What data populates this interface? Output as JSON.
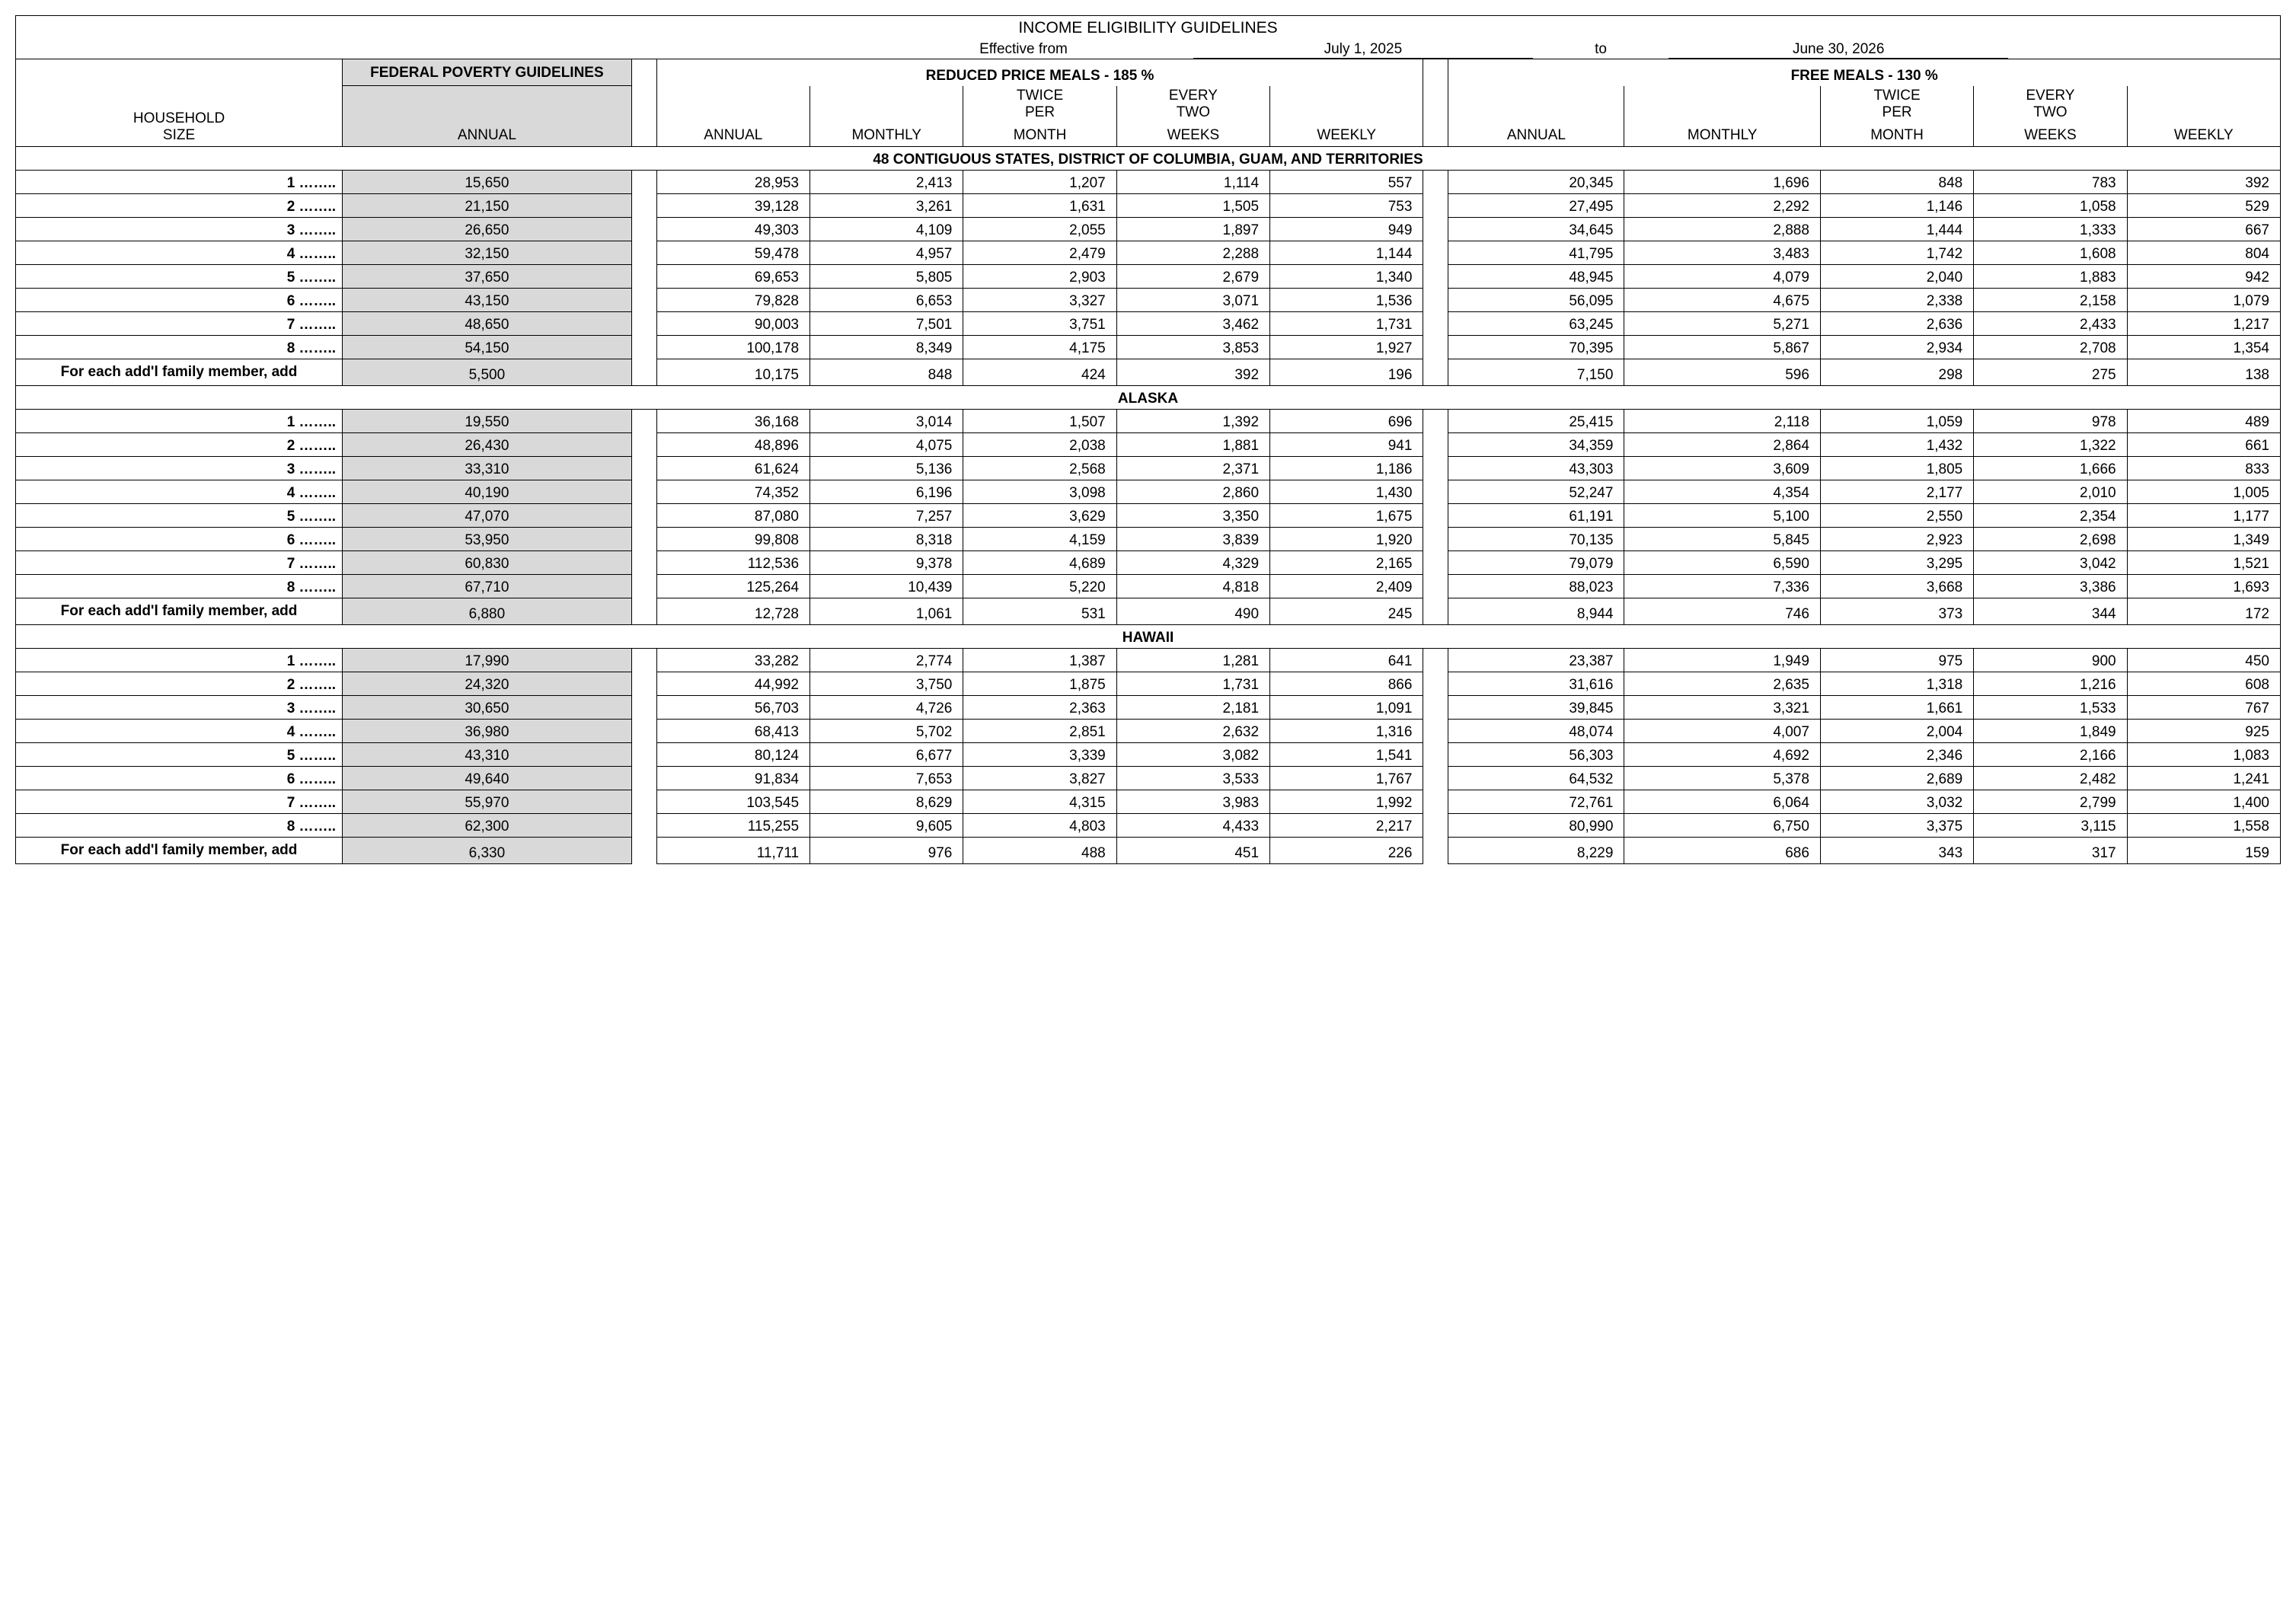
{
  "title": "INCOME ELIGIBILITY GUIDELINES",
  "effective": {
    "label": "Effective from",
    "start": "July 1, 2025",
    "to": "to",
    "end": "June 30, 2026"
  },
  "headers": {
    "household_size": "HOUSEHOLD\nSIZE",
    "fed_pov": "FEDERAL POVERTY GUIDELINES",
    "annual": "ANNUAL",
    "reduced": "REDUCED PRICE MEALS - 185 %",
    "free": "FREE MEALS - 130 %",
    "cols": [
      "ANNUAL",
      "MONTHLY",
      "TWICE PER MONTH",
      "EVERY TWO WEEKS",
      "WEEKLY"
    ],
    "addl": "For each add'l family member, add"
  },
  "sections": [
    {
      "title": "48 CONTIGUOUS STATES, DISTRICT OF COLUMBIA, GUAM, AND TERRITORIES",
      "rows": [
        {
          "size": "1 ……..",
          "fed": "15,650",
          "r": [
            "28,953",
            "2,413",
            "1,207",
            "1,114",
            "557"
          ],
          "f": [
            "20,345",
            "1,696",
            "848",
            "783",
            "392"
          ]
        },
        {
          "size": "2 ……..",
          "fed": "21,150",
          "r": [
            "39,128",
            "3,261",
            "1,631",
            "1,505",
            "753"
          ],
          "f": [
            "27,495",
            "2,292",
            "1,146",
            "1,058",
            "529"
          ]
        },
        {
          "size": "3 ……..",
          "fed": "26,650",
          "r": [
            "49,303",
            "4,109",
            "2,055",
            "1,897",
            "949"
          ],
          "f": [
            "34,645",
            "2,888",
            "1,444",
            "1,333",
            "667"
          ]
        },
        {
          "size": "4 ……..",
          "fed": "32,150",
          "r": [
            "59,478",
            "4,957",
            "2,479",
            "2,288",
            "1,144"
          ],
          "f": [
            "41,795",
            "3,483",
            "1,742",
            "1,608",
            "804"
          ]
        },
        {
          "size": "5 ……..",
          "fed": "37,650",
          "r": [
            "69,653",
            "5,805",
            "2,903",
            "2,679",
            "1,340"
          ],
          "f": [
            "48,945",
            "4,079",
            "2,040",
            "1,883",
            "942"
          ]
        },
        {
          "size": "6 ……..",
          "fed": "43,150",
          "r": [
            "79,828",
            "6,653",
            "3,327",
            "3,071",
            "1,536"
          ],
          "f": [
            "56,095",
            "4,675",
            "2,338",
            "2,158",
            "1,079"
          ]
        },
        {
          "size": "7 ……..",
          "fed": "48,650",
          "r": [
            "90,003",
            "7,501",
            "3,751",
            "3,462",
            "1,731"
          ],
          "f": [
            "63,245",
            "5,271",
            "2,636",
            "2,433",
            "1,217"
          ]
        },
        {
          "size": "8 ……..",
          "fed": "54,150",
          "r": [
            "100,178",
            "8,349",
            "4,175",
            "3,853",
            "1,927"
          ],
          "f": [
            "70,395",
            "5,867",
            "2,934",
            "2,708",
            "1,354"
          ]
        }
      ],
      "addl": {
        "fed": "5,500",
        "r": [
          "10,175",
          "848",
          "424",
          "392",
          "196"
        ],
        "f": [
          "7,150",
          "596",
          "298",
          "275",
          "138"
        ]
      }
    },
    {
      "title": "ALASKA",
      "rows": [
        {
          "size": "1 ……..",
          "fed": "19,550",
          "r": [
            "36,168",
            "3,014",
            "1,507",
            "1,392",
            "696"
          ],
          "f": [
            "25,415",
            "2,118",
            "1,059",
            "978",
            "489"
          ]
        },
        {
          "size": "2 ……..",
          "fed": "26,430",
          "r": [
            "48,896",
            "4,075",
            "2,038",
            "1,881",
            "941"
          ],
          "f": [
            "34,359",
            "2,864",
            "1,432",
            "1,322",
            "661"
          ]
        },
        {
          "size": "3 ……..",
          "fed": "33,310",
          "r": [
            "61,624",
            "5,136",
            "2,568",
            "2,371",
            "1,186"
          ],
          "f": [
            "43,303",
            "3,609",
            "1,805",
            "1,666",
            "833"
          ]
        },
        {
          "size": "4 ……..",
          "fed": "40,190",
          "r": [
            "74,352",
            "6,196",
            "3,098",
            "2,860",
            "1,430"
          ],
          "f": [
            "52,247",
            "4,354",
            "2,177",
            "2,010",
            "1,005"
          ]
        },
        {
          "size": "5 ……..",
          "fed": "47,070",
          "r": [
            "87,080",
            "7,257",
            "3,629",
            "3,350",
            "1,675"
          ],
          "f": [
            "61,191",
            "5,100",
            "2,550",
            "2,354",
            "1,177"
          ]
        },
        {
          "size": "6 ……..",
          "fed": "53,950",
          "r": [
            "99,808",
            "8,318",
            "4,159",
            "3,839",
            "1,920"
          ],
          "f": [
            "70,135",
            "5,845",
            "2,923",
            "2,698",
            "1,349"
          ]
        },
        {
          "size": "7 ……..",
          "fed": "60,830",
          "r": [
            "112,536",
            "9,378",
            "4,689",
            "4,329",
            "2,165"
          ],
          "f": [
            "79,079",
            "6,590",
            "3,295",
            "3,042",
            "1,521"
          ]
        },
        {
          "size": "8 ……..",
          "fed": "67,710",
          "r": [
            "125,264",
            "10,439",
            "5,220",
            "4,818",
            "2,409"
          ],
          "f": [
            "88,023",
            "7,336",
            "3,668",
            "3,386",
            "1,693"
          ]
        }
      ],
      "addl": {
        "fed": "6,880",
        "r": [
          "12,728",
          "1,061",
          "531",
          "490",
          "245"
        ],
        "f": [
          "8,944",
          "746",
          "373",
          "344",
          "172"
        ]
      }
    },
    {
      "title": "HAWAII",
      "rows": [
        {
          "size": "1 ……..",
          "fed": "17,990",
          "r": [
            "33,282",
            "2,774",
            "1,387",
            "1,281",
            "641"
          ],
          "f": [
            "23,387",
            "1,949",
            "975",
            "900",
            "450"
          ]
        },
        {
          "size": "2 ……..",
          "fed": "24,320",
          "r": [
            "44,992",
            "3,750",
            "1,875",
            "1,731",
            "866"
          ],
          "f": [
            "31,616",
            "2,635",
            "1,318",
            "1,216",
            "608"
          ]
        },
        {
          "size": "3 ……..",
          "fed": "30,650",
          "r": [
            "56,703",
            "4,726",
            "2,363",
            "2,181",
            "1,091"
          ],
          "f": [
            "39,845",
            "3,321",
            "1,661",
            "1,533",
            "767"
          ]
        },
        {
          "size": "4 ……..",
          "fed": "36,980",
          "r": [
            "68,413",
            "5,702",
            "2,851",
            "2,632",
            "1,316"
          ],
          "f": [
            "48,074",
            "4,007",
            "2,004",
            "1,849",
            "925"
          ]
        },
        {
          "size": "5 ……..",
          "fed": "43,310",
          "r": [
            "80,124",
            "6,677",
            "3,339",
            "3,082",
            "1,541"
          ],
          "f": [
            "56,303",
            "4,692",
            "2,346",
            "2,166",
            "1,083"
          ]
        },
        {
          "size": "6 ……..",
          "fed": "49,640",
          "r": [
            "91,834",
            "7,653",
            "3,827",
            "3,533",
            "1,767"
          ],
          "f": [
            "64,532",
            "5,378",
            "2,689",
            "2,482",
            "1,241"
          ]
        },
        {
          "size": "7 ……..",
          "fed": "55,970",
          "r": [
            "103,545",
            "8,629",
            "4,315",
            "3,983",
            "1,992"
          ],
          "f": [
            "72,761",
            "6,064",
            "3,032",
            "2,799",
            "1,400"
          ]
        },
        {
          "size": "8 ……..",
          "fed": "62,300",
          "r": [
            "115,255",
            "9,605",
            "4,803",
            "4,433",
            "2,217"
          ],
          "f": [
            "80,990",
            "6,750",
            "3,375",
            "3,115",
            "1,558"
          ]
        }
      ],
      "addl": {
        "fed": "6,330",
        "r": [
          "11,711",
          "976",
          "488",
          "451",
          "226"
        ],
        "f": [
          "8,229",
          "686",
          "343",
          "317",
          "159"
        ]
      }
    }
  ]
}
